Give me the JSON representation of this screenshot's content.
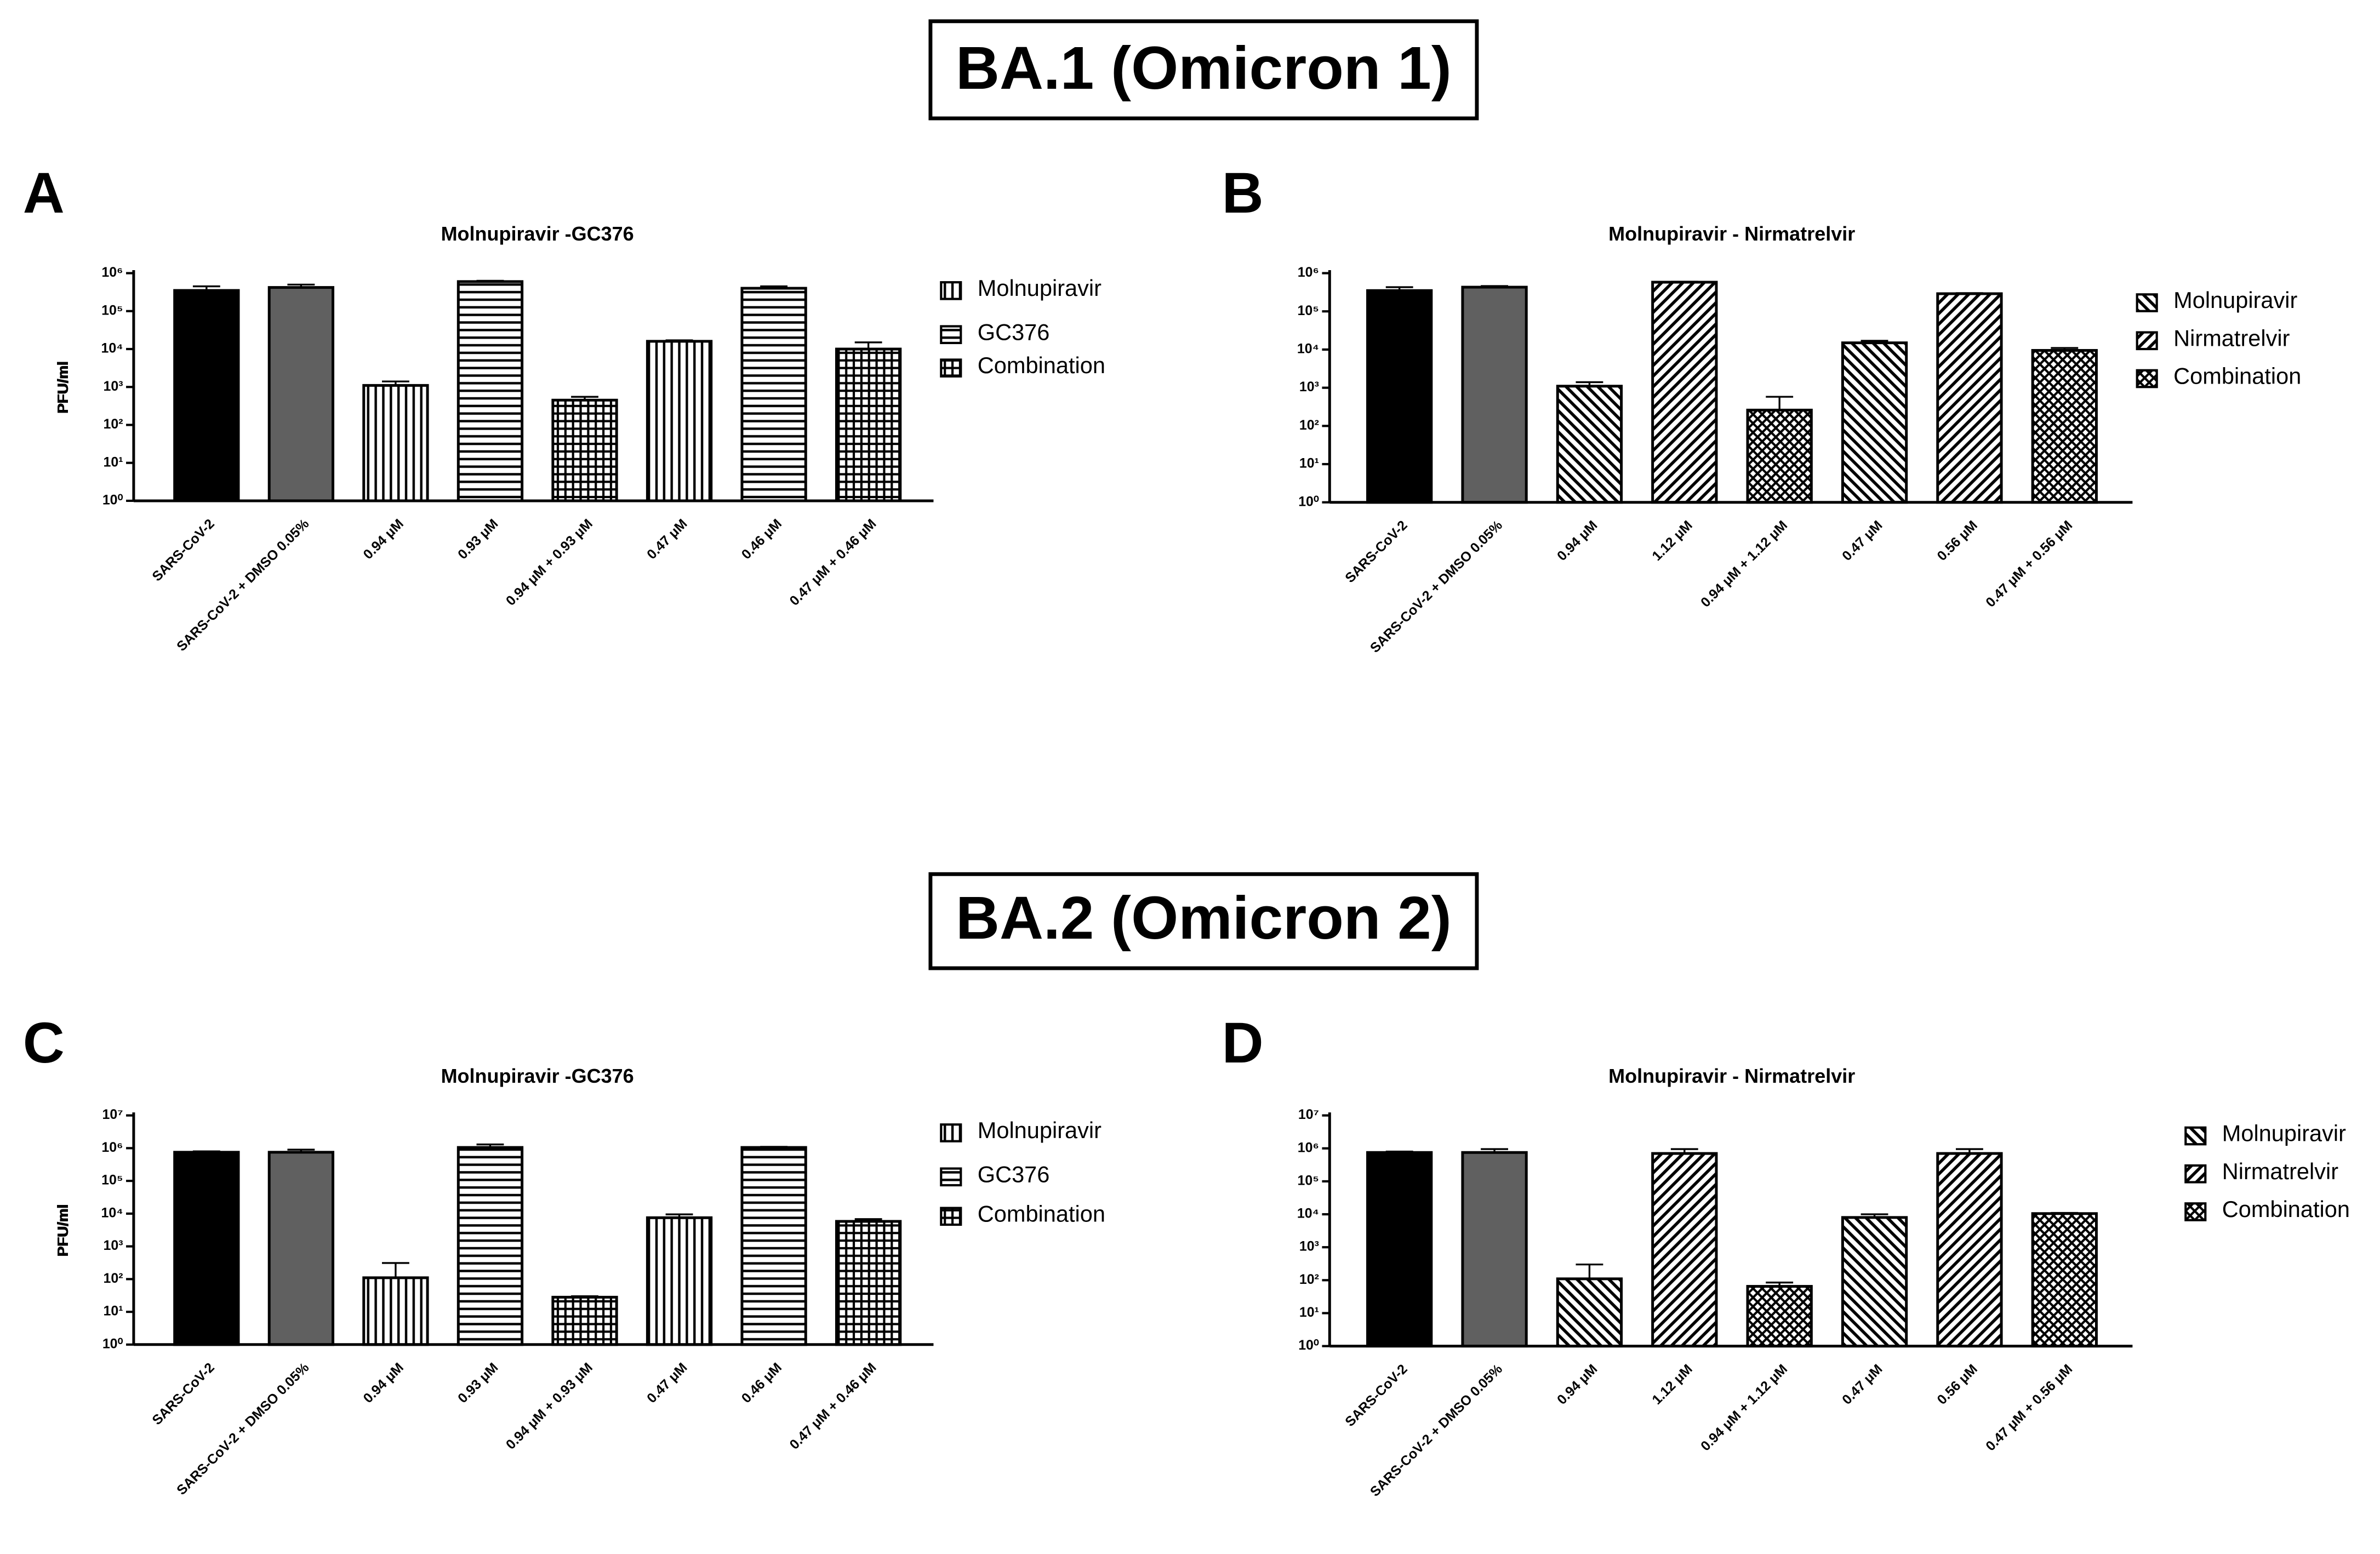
{
  "sections": [
    "BA.1 (Omicron 1)",
    "BA.2 (Omicron 2)"
  ],
  "chart_data": [
    {
      "type": "bar",
      "panel": "A",
      "title": "Molnupiravir -GC376",
      "y_label": "PFU/ml",
      "log_y": true,
      "categories": [
        "SARS-CoV-2",
        "SARS-CoV-2 + DMSO 0.05%",
        "0.94 μM",
        "0.93 μM",
        "0.94 μM + 0.93 μM",
        "0.47 μM",
        "0.46 μM",
        "0.47 μM + 0.46 μM"
      ],
      "values": [
        350000,
        420000,
        1100,
        600000,
        450,
        16000,
        400000,
        10000
      ],
      "errors": [
        100000,
        80000,
        300,
        30000,
        100,
        1000,
        50000,
        5000
      ],
      "bar_styles": [
        "solid-black",
        "solid-gray",
        "vertical",
        "horizontal",
        "grid",
        "vertical",
        "horizontal",
        "grid"
      ],
      "legend": [
        {
          "name": "Molnupiravir",
          "style": "vertical"
        },
        {
          "name": "GC376",
          "style": "horizontal"
        },
        {
          "name": "Combination",
          "style": "grid"
        }
      ],
      "ylim": [
        1,
        1000000
      ],
      "yticks": [
        {
          "value": 1,
          "label": "10⁰"
        },
        {
          "value": 10,
          "label": "10¹"
        },
        {
          "value": 100,
          "label": "10²"
        },
        {
          "value": 1000,
          "label": "10³"
        },
        {
          "value": 10000,
          "label": "10⁴"
        },
        {
          "value": 100000,
          "label": "10⁵"
        },
        {
          "value": 1000000,
          "label": "10⁶"
        }
      ]
    },
    {
      "type": "bar",
      "panel": "B",
      "title": "Molnupiravir - Nirmatrelvir",
      "y_label": "PFU/ml",
      "log_y": true,
      "categories": [
        "SARS-CoV-2",
        "SARS-CoV-2 + DMSO 0.05%",
        "0.94 μM",
        "1.12 μM",
        "0.94 μM + 1.12 μM",
        "0.47 μM",
        "0.56 μM",
        "0.47 μM + 0.56 μM"
      ],
      "values": [
        350000,
        430000,
        1100,
        580000,
        260,
        15000,
        290000,
        9500
      ],
      "errors": [
        80000,
        30000,
        300,
        20000,
        320,
        2000,
        10000,
        1500
      ],
      "bar_styles": [
        "solid-black",
        "solid-gray",
        "diag-back",
        "diag-fwd",
        "cross",
        "diag-back",
        "diag-fwd",
        "cross"
      ],
      "legend": [
        {
          "name": "Molnupiravir",
          "style": "diag-back"
        },
        {
          "name": "Nirmatrelvir",
          "style": "diag-fwd"
        },
        {
          "name": "Combination",
          "style": "cross"
        }
      ],
      "ylim": [
        1,
        1000000
      ],
      "yticks": [
        {
          "value": 1,
          "label": "10⁰"
        },
        {
          "value": 10,
          "label": "10¹"
        },
        {
          "value": 100,
          "label": "10²"
        },
        {
          "value": 1000,
          "label": "10³"
        },
        {
          "value": 10000,
          "label": "10⁴"
        },
        {
          "value": 100000,
          "label": "10⁵"
        },
        {
          "value": 1000000,
          "label": "10⁶"
        }
      ]
    },
    {
      "type": "bar",
      "panel": "C",
      "title": "Molnupiravir -GC376",
      "y_label": "PFU/ml",
      "log_y": true,
      "categories": [
        "SARS-CoV-2",
        "SARS-CoV-2 + DMSO 0.05%",
        "0.94 μM",
        "0.93 μM",
        "0.94 μM + 0.93 μM",
        "0.47 μM",
        "0.46 μM",
        "0.47 μM + 0.46 μM"
      ],
      "values": [
        750000,
        750000,
        110,
        1050000,
        28,
        7500,
        1050000,
        5800
      ],
      "errors": [
        50000,
        150000,
        200,
        250000,
        2,
        2000,
        50000,
        1000
      ],
      "bar_styles": [
        "solid-black",
        "solid-gray",
        "vertical",
        "horizontal",
        "grid",
        "vertical",
        "horizontal",
        "grid"
      ],
      "legend": [
        {
          "name": "Molnupiravir",
          "style": "vertical"
        },
        {
          "name": "GC376",
          "style": "horizontal"
        },
        {
          "name": "Combination",
          "style": "grid"
        }
      ],
      "ylim": [
        1,
        10000000
      ],
      "yticks": [
        {
          "value": 1,
          "label": "10⁰"
        },
        {
          "value": 10,
          "label": "10¹"
        },
        {
          "value": 100,
          "label": "10²"
        },
        {
          "value": 1000,
          "label": "10³"
        },
        {
          "value": 10000,
          "label": "10⁴"
        },
        {
          "value": 100000,
          "label": "10⁵"
        },
        {
          "value": 1000000,
          "label": "10⁶"
        },
        {
          "value": 10000000,
          "label": "10⁷"
        }
      ]
    },
    {
      "type": "bar",
      "panel": "D",
      "title": "Molnupiravir - Nirmatrelvir",
      "y_label": "PFU/ml",
      "log_y": true,
      "categories": [
        "SARS-CoV-2",
        "SARS-CoV-2 + DMSO 0.05%",
        "0.94 μM",
        "1.12 μM",
        "0.94 μM + 1.12 μM",
        "0.47 μM",
        "0.56 μM",
        "0.47 μM + 0.56 μM"
      ],
      "values": [
        750000,
        750000,
        110,
        700000,
        65,
        8000,
        700000,
        10500
      ],
      "errors": [
        50000,
        200000,
        190,
        250000,
        20,
        2000,
        250000,
        500
      ],
      "bar_styles": [
        "solid-black",
        "solid-gray",
        "diag-back",
        "diag-fwd",
        "cross",
        "diag-back",
        "diag-fwd",
        "cross"
      ],
      "legend": [
        {
          "name": "Molnupiravir",
          "style": "diag-back"
        },
        {
          "name": "Nirmatrelvir",
          "style": "diag-fwd"
        },
        {
          "name": "Combination",
          "style": "cross"
        }
      ],
      "ylim": [
        1,
        10000000
      ],
      "yticks": [
        {
          "value": 1,
          "label": "10⁰"
        },
        {
          "value": 10,
          "label": "10¹"
        },
        {
          "value": 100,
          "label": "10²"
        },
        {
          "value": 1000,
          "label": "10³"
        },
        {
          "value": 10000,
          "label": "10⁴"
        },
        {
          "value": 100000,
          "label": "10⁵"
        },
        {
          "value": 1000000,
          "label": "10⁶"
        },
        {
          "value": 10000000,
          "label": "10⁷"
        }
      ]
    }
  ]
}
